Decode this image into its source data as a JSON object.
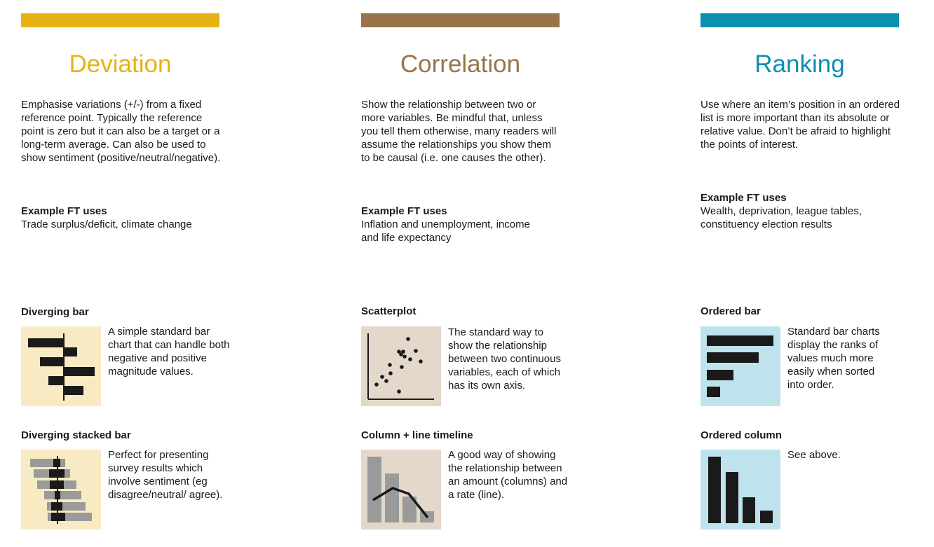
{
  "columns": [
    {
      "key": "deviation",
      "accent": "#e6b312",
      "thumb_bg": "#f8eac2",
      "title": "Deviation",
      "description": "Emphasise variations (+/-) from a fixed reference point. Typically the reference point is zero but it can also be a target or a long-term average. Can also be used to show sentiment (positive/neutral/negative).",
      "uses_heading": "Example FT uses",
      "uses_text": "Trade surplus/deficit, climate change",
      "charts": [
        {
          "name": "Diverging bar",
          "icon": "diverging-bar-icon",
          "desc": "A simple standard bar chart that can handle both negative and positive magnitude values."
        },
        {
          "name": "Diverging stacked bar",
          "icon": "diverging-stacked-bar-icon",
          "desc": "Perfect for presenting survey results which involve sentiment (eg disagree/neutral/ agree)."
        }
      ]
    },
    {
      "key": "correlation",
      "accent": "#98744b",
      "thumb_bg": "#e4d8ca",
      "title": "Correlation",
      "description": "Show the relationship between two or more variables. Be mindful that, unless you tell them otherwise, many readers will assume the relationships you show them to be causal (i.e. one causes the other).",
      "uses_heading": "Example FT uses",
      "uses_text": "Inflation and unemployment, income and life expectancy",
      "charts": [
        {
          "name": "Scatterplot",
          "icon": "scatterplot-icon",
          "desc": "The standard way to show the relationship between two continuous variables, each of which has its own axis."
        },
        {
          "name": "Column + line timeline",
          "icon": "column-line-timeline-icon",
          "desc": "A good way of showing the relationship between an amount (columns) and a rate (line)."
        }
      ]
    },
    {
      "key": "ranking",
      "accent": "#0a8fb0",
      "thumb_bg": "#bfe3ec",
      "title": "Ranking",
      "description": "Use where an item’s position in an ordered list is more important than its absolute or relative value. Don’t be afraid to highlight the points of interest.",
      "uses_heading": "Example FT uses",
      "uses_text": "Wealth, deprivation, league tables, constituency election results",
      "charts": [
        {
          "name": "Ordered bar",
          "icon": "ordered-bar-icon",
          "desc": "Standard bar charts display the ranks of values much more easily when sorted into order."
        },
        {
          "name": "Ordered column",
          "icon": "ordered-column-icon",
          "desc": "See above."
        }
      ]
    }
  ]
}
